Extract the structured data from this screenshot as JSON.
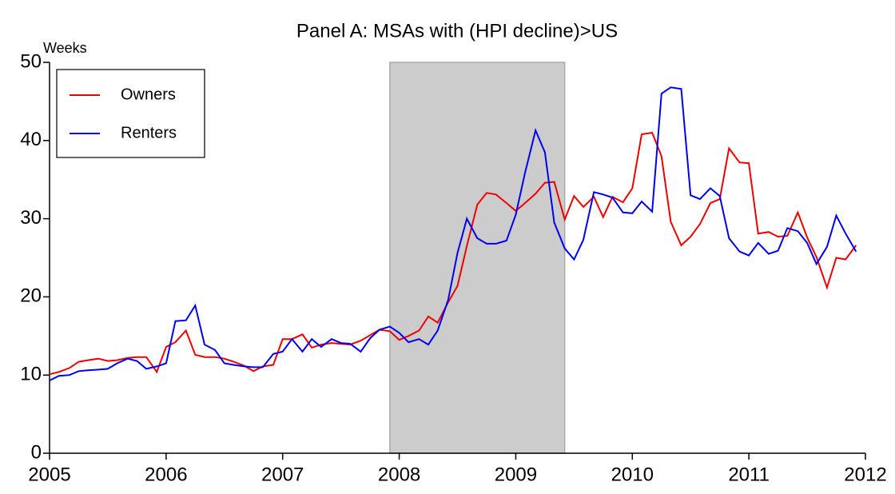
{
  "chart_data": {
    "type": "line",
    "title": "Panel A: MSAs with (HPI decline)>US",
    "y_label": "Weeks",
    "x": [
      2005.0,
      2005.08,
      2005.17,
      2005.25,
      2005.33,
      2005.42,
      2005.5,
      2005.58,
      2005.67,
      2005.75,
      2005.83,
      2005.92,
      2006.0,
      2006.08,
      2006.17,
      2006.25,
      2006.33,
      2006.42,
      2006.5,
      2006.58,
      2006.67,
      2006.75,
      2006.83,
      2006.92,
      2007.0,
      2007.08,
      2007.17,
      2007.25,
      2007.33,
      2007.42,
      2007.5,
      2007.58,
      2007.67,
      2007.75,
      2007.83,
      2007.92,
      2008.0,
      2008.08,
      2008.17,
      2008.25,
      2008.33,
      2008.42,
      2008.5,
      2008.58,
      2008.67,
      2008.75,
      2008.83,
      2008.92,
      2009.0,
      2009.08,
      2009.17,
      2009.25,
      2009.33,
      2009.42,
      2009.5,
      2009.58,
      2009.67,
      2009.75,
      2009.83,
      2009.92,
      2010.0,
      2010.08,
      2010.17,
      2010.25,
      2010.33,
      2010.42,
      2010.5,
      2010.58,
      2010.67,
      2010.75,
      2010.83,
      2010.92,
      2011.0,
      2011.08,
      2011.17,
      2011.25,
      2011.33,
      2011.42,
      2011.5,
      2011.58,
      2011.67,
      2011.75,
      2011.83,
      2011.92
    ],
    "series": [
      {
        "name": "Owners",
        "color": "#ee0000",
        "values": [
          10.1,
          10.4,
          10.9,
          11.7,
          11.9,
          12.1,
          11.8,
          11.9,
          12.2,
          12.3,
          12.3,
          10.4,
          13.6,
          14.2,
          15.7,
          12.6,
          12.3,
          12.3,
          12.1,
          11.7,
          11.2,
          10.5,
          11.1,
          11.3,
          14.6,
          14.6,
          15.2,
          13.5,
          13.9,
          14.1,
          14.0,
          13.9,
          14.4,
          15.1,
          15.8,
          15.6,
          14.5,
          15.0,
          15.7,
          17.5,
          16.7,
          19.3,
          21.4,
          26.5,
          31.8,
          33.3,
          33.1,
          32.0,
          31.0,
          32.0,
          33.2,
          34.6,
          34.7,
          29.9,
          32.9,
          31.5,
          32.8,
          30.2,
          32.8,
          32.1,
          33.9,
          40.8,
          41.0,
          38.0,
          29.6,
          26.6,
          27.7,
          29.3,
          32.0,
          32.5,
          39.0,
          37.2,
          37.1,
          28.1,
          28.3,
          27.7,
          27.8,
          30.8,
          27.6,
          25.1,
          21.2,
          25.0,
          24.8,
          26.6
        ]
      },
      {
        "name": "Renters",
        "color": "#0000ee",
        "values": [
          9.3,
          9.9,
          10.0,
          10.5,
          10.6,
          10.7,
          10.8,
          11.5,
          12.1,
          11.8,
          10.8,
          11.1,
          11.5,
          16.9,
          17.0,
          18.9,
          13.9,
          13.2,
          11.5,
          11.3,
          11.1,
          11.0,
          11.0,
          12.7,
          13.0,
          14.6,
          13.0,
          14.6,
          13.6,
          14.6,
          14.1,
          14.0,
          13.0,
          14.7,
          15.8,
          16.2,
          15.4,
          14.2,
          14.6,
          13.9,
          15.7,
          19.6,
          25.6,
          30.0,
          27.5,
          26.8,
          26.8,
          27.2,
          30.5,
          35.9,
          41.3,
          38.5,
          29.5,
          26.2,
          24.8,
          27.3,
          33.4,
          33.1,
          32.7,
          30.8,
          30.7,
          32.2,
          30.9,
          46.0,
          46.8,
          46.6,
          33.0,
          32.5,
          33.9,
          32.9,
          27.5,
          25.8,
          25.3,
          26.9,
          25.5,
          25.9,
          28.8,
          28.4,
          26.9,
          24.2,
          26.4,
          30.4,
          28.1,
          25.8
        ]
      }
    ],
    "shaded_x": [
      2007.92,
      2009.42
    ],
    "shade_color": "#cccccc",
    "xlim": [
      2005,
      2012
    ],
    "xticks": [
      2005,
      2006,
      2007,
      2008,
      2009,
      2010,
      2011,
      2012
    ],
    "ylim": [
      0,
      50
    ],
    "yticks": [
      0,
      10,
      20,
      30,
      40,
      50
    ],
    "legend": "upper left"
  }
}
